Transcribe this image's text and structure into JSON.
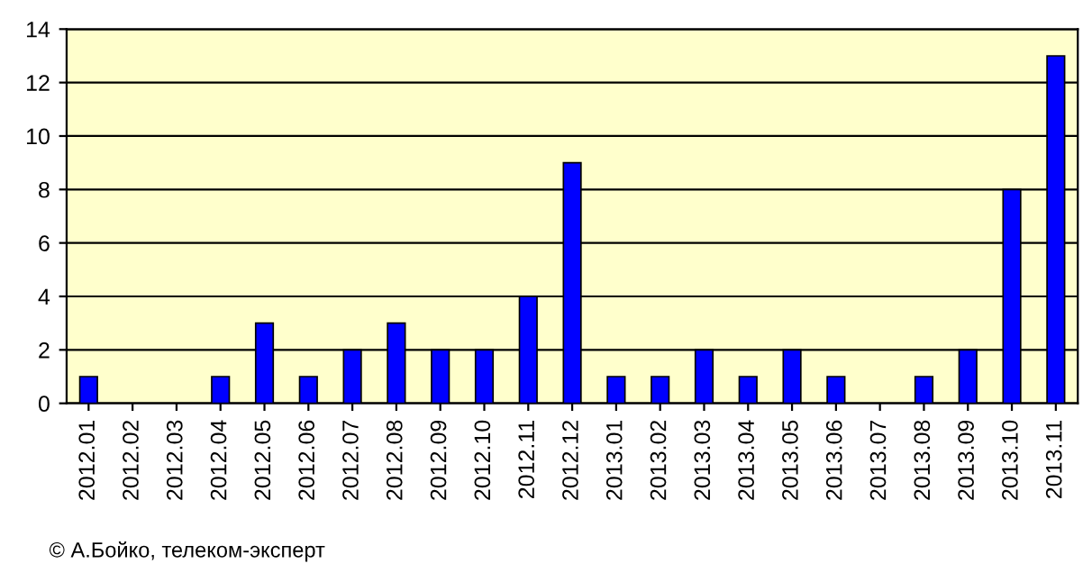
{
  "chart_data": {
    "type": "bar",
    "categories": [
      "2012.01",
      "2012.02",
      "2012.03",
      "2012.04",
      "2012.05",
      "2012.06",
      "2012.07",
      "2012.08",
      "2012.09",
      "2012.10",
      "2012.11",
      "2012.12",
      "2013.01",
      "2013.02",
      "2013.03",
      "2013.04",
      "2013.05",
      "2013.06",
      "2013.07",
      "2013.08",
      "2013.09",
      "2013.10",
      "2013.11"
    ],
    "values": [
      1,
      0,
      0,
      1,
      3,
      1,
      2,
      3,
      2,
      2,
      4,
      9,
      1,
      1,
      2,
      1,
      2,
      1,
      0,
      1,
      2,
      8,
      13
    ],
    "color": "#0000ff",
    "ylim": [
      0,
      14
    ],
    "yticks": [
      0,
      2,
      4,
      6,
      8,
      10,
      12,
      14
    ],
    "grid": "y",
    "annotations": [
      "© А.Бойко, телеком-эксперт"
    ]
  }
}
